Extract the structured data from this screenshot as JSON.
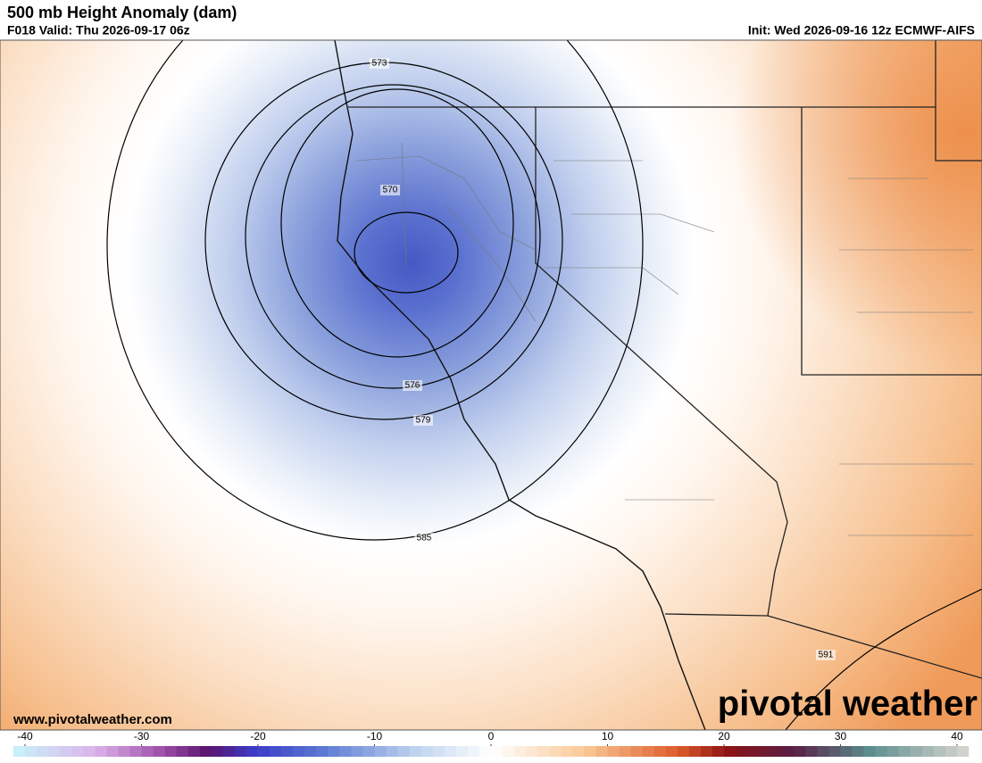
{
  "header": {
    "title": "500 mb Height Anomaly (dam)",
    "valid": "F018 Valid: Thu 2026-09-17 06z",
    "init": "Init: Wed 2026-09-16 12z ECMWF-AIFS"
  },
  "map": {
    "contour_labels": [
      "573",
      "570",
      "576",
      "579",
      "585",
      "591"
    ]
  },
  "footer": {
    "website": "www.pivotalweather.com",
    "logo": "pivotal weather"
  },
  "colorbar": {
    "lim": [
      -40,
      40
    ],
    "ticks": [
      -40,
      -30,
      -20,
      -10,
      0,
      10,
      20,
      30,
      40
    ]
  }
}
